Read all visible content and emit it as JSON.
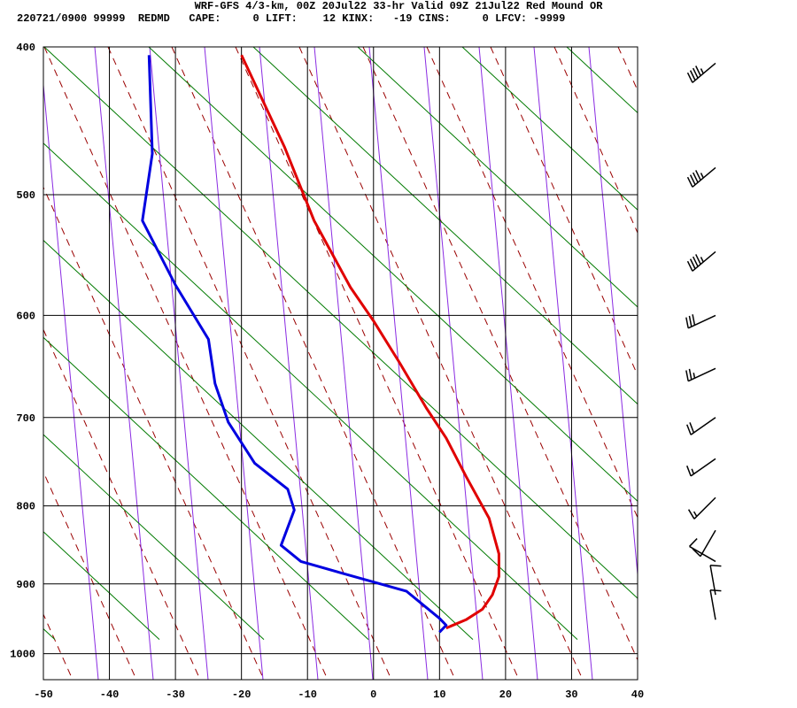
{
  "header": {
    "title": "WRF-GFS 4/3-km, 00Z 20Jul22 33-hr Valid 09Z 21Jul22 Red Mound OR",
    "station_line": "220721/0900 99999  REDMD   CAPE:     0 LIFT:    12 KINX:   -19 CINS:     0 LFCV: -9999"
  },
  "chart_data": {
    "type": "line",
    "title": "WRF-GFS 4/3-km, 00Z 20Jul22 33-hr Valid 09Z 21Jul22 Red Mound OR",
    "xlabel": "",
    "ylabel": "",
    "x_ticks": [
      "-50",
      "-40",
      "-30",
      "-20",
      "-10",
      "0",
      "10",
      "20",
      "30",
      "40"
    ],
    "x_tick_values": [
      -50,
      -40,
      -30,
      -20,
      -10,
      0,
      10,
      20,
      30,
      40
    ],
    "y_ticks": [
      "400",
      "500",
      "600",
      "700",
      "800",
      "900",
      "1000"
    ],
    "y_tick_values": [
      400,
      500,
      600,
      700,
      800,
      900,
      1000
    ],
    "xlim": [
      -50,
      40
    ],
    "ylim": [
      1040,
      400
    ],
    "y_scale": "log",
    "grid": true,
    "colors": {
      "temperature": "#e00000",
      "dewpoint": "#0000e0",
      "dry_adiabat": "#9a0000",
      "moist_adiabat": "#8a2be2",
      "mixing_ratio": "#007a00",
      "grid": "#000000"
    },
    "series": [
      {
        "key": "temperature",
        "points": [
          [
            -20,
            405
          ],
          [
            -13.5,
            465
          ],
          [
            -9,
            520
          ],
          [
            -3.5,
            575
          ],
          [
            0,
            605
          ],
          [
            4,
            645
          ],
          [
            8,
            690
          ],
          [
            11,
            722
          ],
          [
            14,
            765
          ],
          [
            17.5,
            815
          ],
          [
            19,
            860
          ],
          [
            19,
            890
          ],
          [
            18,
            915
          ],
          [
            16.5,
            935
          ],
          [
            14,
            950
          ],
          [
            11,
            962
          ]
        ]
      },
      {
        "key": "dewpoint",
        "points": [
          [
            -34,
            405
          ],
          [
            -33.5,
            470
          ],
          [
            -35,
            520
          ],
          [
            -30,
            573
          ],
          [
            -25,
            622
          ],
          [
            -24,
            665
          ],
          [
            -22,
            705
          ],
          [
            -18,
            750
          ],
          [
            -13,
            780
          ],
          [
            -12,
            805
          ],
          [
            -14,
            849
          ],
          [
            -11,
            870
          ],
          [
            -5,
            885
          ],
          [
            5,
            910
          ],
          [
            10,
            948
          ],
          [
            11,
            958
          ],
          [
            10,
            968
          ]
        ]
      }
    ],
    "wind_barbs": [
      {
        "pressure": 410,
        "speed_kt": 45,
        "dir_deg": 230
      },
      {
        "pressure": 480,
        "speed_kt": 45,
        "dir_deg": 230
      },
      {
        "pressure": 545,
        "speed_kt": 45,
        "dir_deg": 230
      },
      {
        "pressure": 600,
        "speed_kt": 30,
        "dir_deg": 245
      },
      {
        "pressure": 650,
        "speed_kt": 25,
        "dir_deg": 245
      },
      {
        "pressure": 700,
        "speed_kt": 20,
        "dir_deg": 235
      },
      {
        "pressure": 745,
        "speed_kt": 15,
        "dir_deg": 235
      },
      {
        "pressure": 790,
        "speed_kt": 15,
        "dir_deg": 225
      },
      {
        "pressure": 830,
        "speed_kt": 10,
        "dir_deg": 210
      },
      {
        "pressure": 870,
        "speed_kt": 10,
        "dir_deg": 300
      },
      {
        "pressure": 915,
        "speed_kt": 10,
        "dir_deg": 350
      },
      {
        "pressure": 950,
        "speed_kt": 10,
        "dir_deg": 350
      }
    ]
  }
}
